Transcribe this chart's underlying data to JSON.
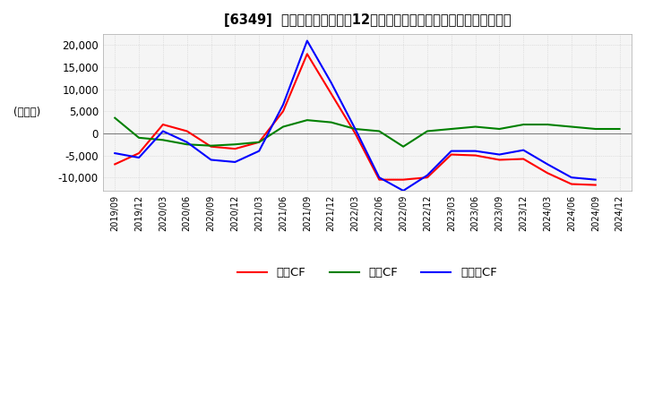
{
  "title": "[6349]  キャッシュフローの12か月移動合計の対前年同期増減額の推移",
  "ylabel": "(百万円)",
  "ylim": [
    -13000,
    22500
  ],
  "yticks": [
    -10000,
    -5000,
    0,
    5000,
    10000,
    15000,
    20000
  ],
  "dates": [
    "2019/09",
    "2019/12",
    "2020/03",
    "2020/06",
    "2020/09",
    "2020/12",
    "2021/03",
    "2021/06",
    "2021/09",
    "2021/12",
    "2022/03",
    "2022/06",
    "2022/09",
    "2022/12",
    "2023/03",
    "2023/06",
    "2023/09",
    "2023/12",
    "2024/03",
    "2024/06",
    "2024/09",
    "2024/12"
  ],
  "operating_cf": [
    -7000,
    -4500,
    2000,
    500,
    -3000,
    -3500,
    -2000,
    5000,
    18000,
    9000,
    0,
    -10500,
    -10500,
    -10000,
    -4800,
    -5000,
    -6000,
    -5800,
    -9000,
    -11500,
    -11700,
    null
  ],
  "investing_cf": [
    3500,
    -1000,
    -1500,
    -2500,
    -2800,
    -2500,
    -2000,
    1500,
    3000,
    2500,
    1000,
    500,
    -3000,
    500,
    1000,
    1500,
    1000,
    2000,
    2000,
    1500,
    1000,
    1000
  ],
  "free_cf": [
    -4500,
    -5500,
    500,
    -2000,
    -6000,
    -6500,
    -4000,
    6500,
    21000,
    11500,
    1000,
    -10000,
    -13000,
    -9500,
    -4000,
    -4000,
    -4800,
    -3800,
    -7000,
    -10000,
    -10500,
    null
  ],
  "operating_color": "#FF0000",
  "investing_color": "#008000",
  "free_color": "#0000FF",
  "background_color": "#ffffff",
  "plot_background_color": "#f5f5f5",
  "grid_color": "#cccccc",
  "legend_labels": [
    "営業CF",
    "投資CF",
    "フリーCF"
  ]
}
